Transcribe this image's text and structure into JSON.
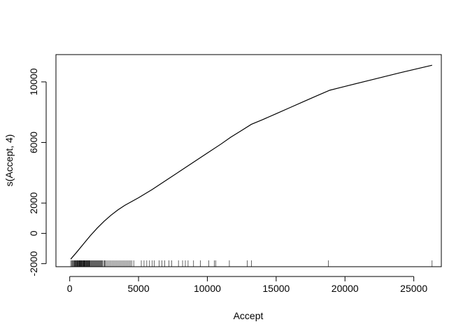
{
  "chart_data": {
    "type": "line",
    "title": "",
    "xlabel": "Accept",
    "ylabel": "s(Accept, 4)",
    "xlim": [
      -1000,
      27000
    ],
    "ylim": [
      -2200,
      11800
    ],
    "x_ticks": [
      0,
      5000,
      10000,
      15000,
      20000,
      25000
    ],
    "x_tick_labels": [
      "0",
      "5000",
      "10000",
      "15000",
      "20000",
      "25000"
    ],
    "y_ticks": [
      -2000,
      0,
      2000,
      6000,
      10000
    ],
    "y_tick_labels": [
      "-2000",
      "0",
      "2000",
      "6000",
      "10000"
    ],
    "grid": false,
    "legend": "none",
    "series": [
      {
        "x": [
          72,
          500,
          1000,
          1500,
          2000,
          2500,
          3000,
          3500,
          4000,
          5000,
          6000,
          7000,
          8000,
          9000,
          10000,
          11000,
          11700,
          12500,
          13200,
          14000,
          15000,
          16000,
          17000,
          18000,
          18900,
          20000,
          22000,
          24000,
          26330
        ],
        "y": [
          -1700,
          -1250,
          -700,
          -150,
          350,
          800,
          1200,
          1550,
          1850,
          2350,
          2900,
          3500,
          4100,
          4700,
          5300,
          5900,
          6350,
          6800,
          7200,
          7500,
          7900,
          8300,
          8700,
          9100,
          9450,
          9700,
          10150,
          10600,
          11100
        ]
      }
    ],
    "rug": [
      72,
      150,
      200,
      250,
      300,
      330,
      370,
      400,
      430,
      470,
      500,
      540,
      560,
      600,
      630,
      650,
      680,
      700,
      720,
      750,
      780,
      800,
      820,
      850,
      880,
      900,
      930,
      960,
      1000,
      1020,
      1050,
      1080,
      1100,
      1130,
      1160,
      1200,
      1230,
      1260,
      1300,
      1330,
      1360,
      1400,
      1430,
      1460,
      1500,
      1550,
      1600,
      1650,
      1700,
      1750,
      1800,
      1850,
      1900,
      1950,
      2000,
      2050,
      2100,
      2150,
      2200,
      2250,
      2300,
      2350,
      2400,
      2500,
      2550,
      2600,
      2700,
      2800,
      2900,
      3000,
      3100,
      3200,
      3300,
      3400,
      3500,
      3600,
      3700,
      3800,
      3900,
      4000,
      4100,
      4200,
      4300,
      4400,
      4500,
      4650,
      5200,
      5400,
      5600,
      5800,
      6000,
      6150,
      6500,
      6700,
      6900,
      7200,
      7400,
      7900,
      8200,
      8400,
      8600,
      9000,
      9500,
      10100,
      10500,
      10600,
      11600,
      12900,
      13200,
      18800,
      26330
    ]
  }
}
